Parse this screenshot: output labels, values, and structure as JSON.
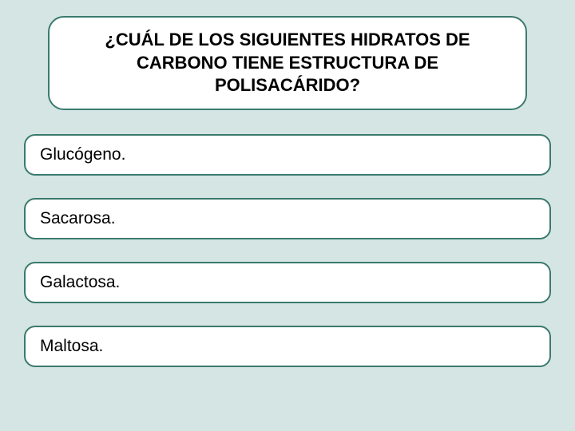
{
  "question": {
    "text": "¿CUÁL DE LOS SIGUIENTES HIDRATOS DE CARBONO TIENE ESTRUCTURA DE POLISACÁRIDO?",
    "border_color": "#3a7a6e",
    "background_color": "#ffffff",
    "font_size": 22,
    "font_weight": "bold"
  },
  "answers": [
    {
      "label": "Glucógeno."
    },
    {
      "label": "Sacarosa."
    },
    {
      "label": "Galactosa."
    },
    {
      "label": "Maltosa."
    }
  ],
  "styling": {
    "page_background": "#d5e5e3",
    "box_background": "#ffffff",
    "border_color": "#3a7a6e",
    "border_width": 2,
    "question_border_radius": 20,
    "answer_border_radius": 14,
    "answer_font_size": 21,
    "text_color": "#000000"
  }
}
